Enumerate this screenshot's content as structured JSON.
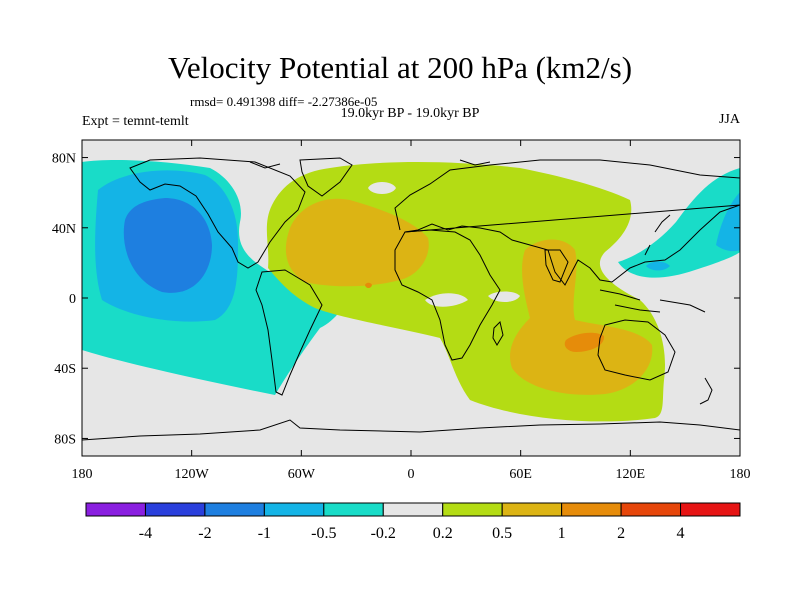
{
  "title": "Velocity Potential at 200 hPa (km2/s)",
  "stats": "rmsd= 0.491398  diff= -2.27386e-05",
  "period": "19.0kyr BP - 19.0kyr BP",
  "experiment": "Expt = temnt-temlt",
  "season": "JJA",
  "map": {
    "lon_ticks": [
      "180",
      "120W",
      "60W",
      "0",
      "60E",
      "120E",
      "180"
    ],
    "lat_ticks": [
      "80N",
      "40N",
      "0",
      "40S",
      "80S"
    ],
    "background_color": "#e6e6e6"
  },
  "colorbar": {
    "labels": [
      "-4",
      "-2",
      "-1",
      "-0.5",
      "-0.2",
      "0.2",
      "0.5",
      "1",
      "2",
      "4"
    ],
    "colors": [
      "#8a1fe0",
      "#2a3fdc",
      "#1e7fe0",
      "#14b4e6",
      "#19dcc8",
      "#e6e6e6",
      "#b4dc14",
      "#dcb414",
      "#e68c0a",
      "#e6460a",
      "#e61414"
    ]
  }
}
